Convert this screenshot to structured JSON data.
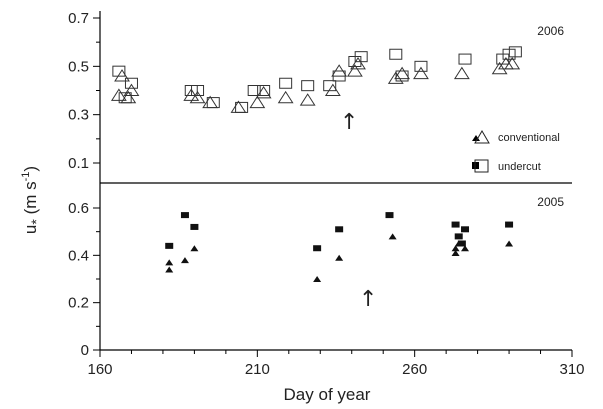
{
  "chart_data": [
    {
      "type": "scatter",
      "panel": "2006",
      "xlabel": "Day of year",
      "ylabel_main": "u",
      "ylabel_sub": "*",
      "ylabel_units": " (m s",
      "ylabel_exp": "-1",
      "ylabel_close": ")",
      "ylim": [
        0,
        0.7
      ],
      "yticks": [
        "0.1",
        "0.3",
        "0.5",
        "0.7"
      ],
      "xlim": [
        160,
        310
      ],
      "annotation": "↑",
      "annotation_at": [
        245,
        0.3
      ],
      "legend": [
        {
          "label": "conventional",
          "filled_marker": "triangle-filled",
          "open_marker": "triangle-open"
        },
        {
          "label": "undercut",
          "filled_marker": "square-filled",
          "open_marker": "square-open"
        }
      ],
      "series": [
        {
          "name": "conventional",
          "marker": "triangle-open",
          "points": [
            [
              166,
              0.38
            ],
            [
              167,
              0.46
            ],
            [
              169,
              0.37
            ],
            [
              170,
              0.4
            ],
            [
              189,
              0.38
            ],
            [
              191,
              0.37
            ],
            [
              195,
              0.35
            ],
            [
              204,
              0.33
            ],
            [
              210,
              0.35
            ],
            [
              212,
              0.39
            ],
            [
              219,
              0.37
            ],
            [
              226,
              0.36
            ],
            [
              234,
              0.4
            ],
            [
              236,
              0.48
            ],
            [
              241,
              0.48
            ],
            [
              242,
              0.51
            ],
            [
              254,
              0.45
            ],
            [
              256,
              0.47
            ],
            [
              262,
              0.47
            ],
            [
              275,
              0.47
            ],
            [
              287,
              0.49
            ],
            [
              289,
              0.51
            ],
            [
              291,
              0.51
            ]
          ]
        },
        {
          "name": "undercut",
          "marker": "square-open",
          "points": [
            [
              166,
              0.48
            ],
            [
              168,
              0.37
            ],
            [
              170,
              0.43
            ],
            [
              189,
              0.4
            ],
            [
              191,
              0.4
            ],
            [
              196,
              0.35
            ],
            [
              205,
              0.33
            ],
            [
              209,
              0.4
            ],
            [
              212,
              0.4
            ],
            [
              219,
              0.43
            ],
            [
              226,
              0.42
            ],
            [
              233,
              0.42
            ],
            [
              236,
              0.46
            ],
            [
              241,
              0.52
            ],
            [
              243,
              0.54
            ],
            [
              254,
              0.55
            ],
            [
              256,
              0.46
            ],
            [
              262,
              0.5
            ],
            [
              276,
              0.53
            ],
            [
              288,
              0.53
            ],
            [
              290,
              0.55
            ],
            [
              292,
              0.56
            ]
          ]
        }
      ]
    },
    {
      "type": "scatter",
      "panel": "2005",
      "xlabel": "Day of year",
      "xticks": [
        "160",
        "210",
        "260",
        "310"
      ],
      "ylim": [
        0,
        0.7
      ],
      "yticks": [
        "0",
        "0.2",
        "0.4",
        "0.6"
      ],
      "xlim": [
        160,
        310
      ],
      "annotation": "↑",
      "annotation_at": [
        244,
        0.2
      ],
      "series": [
        {
          "name": "conventional",
          "marker": "triangle-filled",
          "points": [
            [
              182,
              0.37
            ],
            [
              182,
              0.34
            ],
            [
              187,
              0.38
            ],
            [
              190,
              0.43
            ],
            [
              229,
              0.3
            ],
            [
              236,
              0.39
            ],
            [
              253,
              0.48
            ],
            [
              273,
              0.43
            ],
            [
              273,
              0.41
            ],
            [
              274,
              0.45
            ],
            [
              276,
              0.43
            ],
            [
              290,
              0.45
            ]
          ]
        },
        {
          "name": "undercut",
          "marker": "square-filled",
          "points": [
            [
              182,
              0.44
            ],
            [
              187,
              0.57
            ],
            [
              190,
              0.52
            ],
            [
              229,
              0.43
            ],
            [
              236,
              0.51
            ],
            [
              252,
              0.57
            ],
            [
              273,
              0.53
            ],
            [
              274,
              0.48
            ],
            [
              275,
              0.45
            ],
            [
              276,
              0.51
            ],
            [
              290,
              0.53
            ]
          ]
        }
      ]
    }
  ]
}
